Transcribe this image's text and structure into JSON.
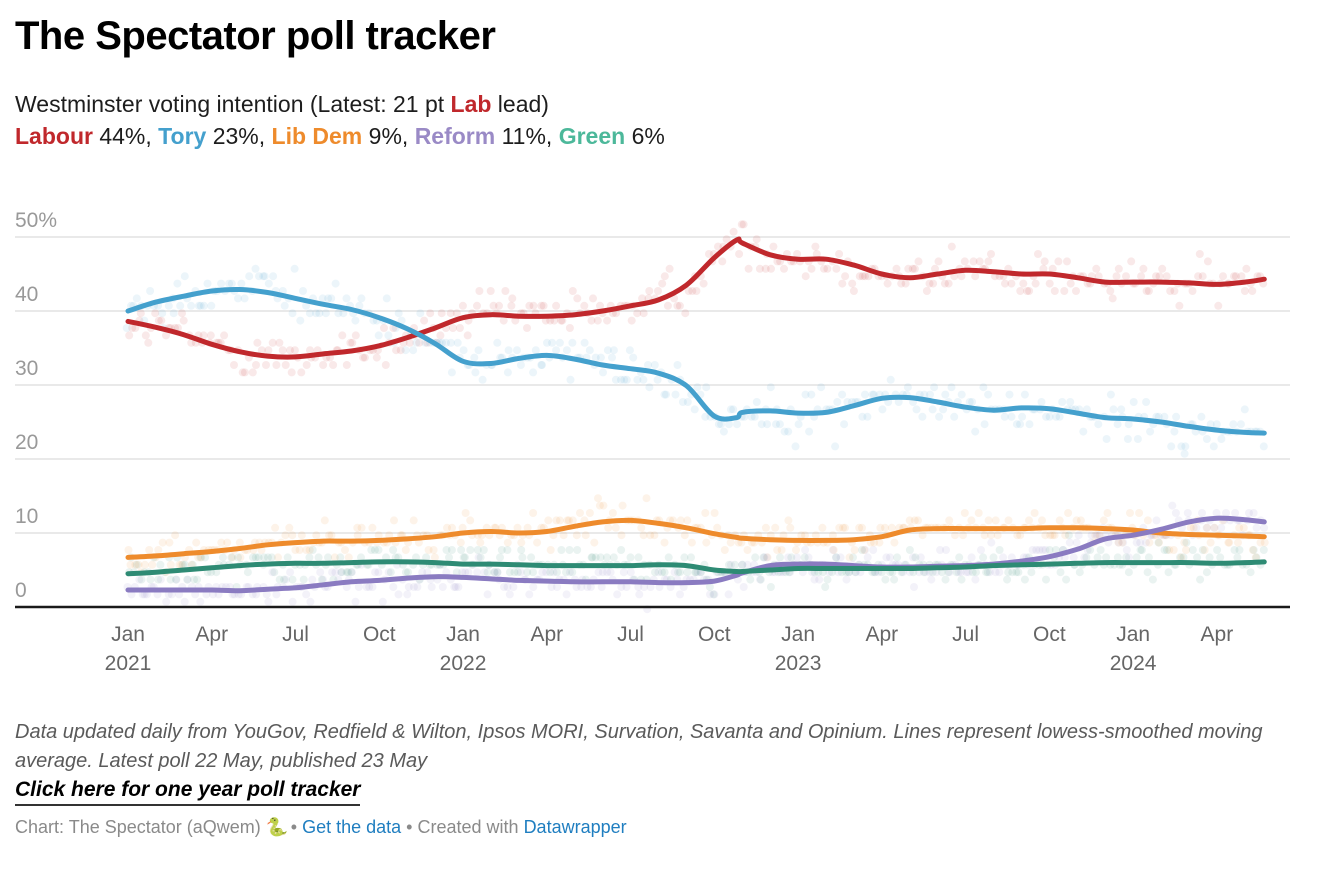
{
  "header": {
    "title": "The Spectator poll tracker",
    "subtitle_prefix": "Westminster voting intention (Latest: 21 pt ",
    "subtitle_party": "Lab",
    "subtitle_suffix": " lead)",
    "legend": [
      {
        "party": "Labour",
        "value": " 44%",
        "sep": ", "
      },
      {
        "party": "Tory",
        "value": " 23%",
        "sep": ", "
      },
      {
        "party": "Lib Dem",
        "value": " 9%",
        "sep": ", "
      },
      {
        "party": "Reform",
        "value": " 11%",
        "sep": ", "
      },
      {
        "party": "Green",
        "value": " 6%",
        "sep": ""
      }
    ]
  },
  "notes": "Data updated daily from YouGov, Redfield & Wilton, Ipsos MORI, Survation, Savanta and Opinium. Lines represent lowess-smoothed moving average. Latest poll 22 May, published 23 May",
  "link_label": "Click here for one year poll tracker",
  "footer": {
    "chart_credit": "Chart: The Spectator (aQwem)",
    "snake_icon": "🐍",
    "bullet": " • ",
    "get_data": "Get the data",
    "created_with": "Created with",
    "datawrapper": "Datawrapper"
  },
  "colors": {
    "Labour": "#c0282c",
    "Tory": "#44a0cd",
    "Lib Dem": "#ee8b2c",
    "Reform": "#8a7bc1",
    "Green": "#2e8b74"
  },
  "chart_data": {
    "type": "line",
    "title": "The Spectator poll tracker",
    "subtitle": "Westminster voting intention",
    "xlabel": "",
    "ylabel": "",
    "ylim": [
      0,
      50
    ],
    "y_ticks": [
      0,
      10,
      20,
      30,
      40,
      50
    ],
    "y_tick_labels": [
      "0",
      "10",
      "20",
      "30",
      "40",
      "50%"
    ],
    "x_ticks": [
      {
        "month_index": 0,
        "label": "Jan",
        "year": "2021"
      },
      {
        "month_index": 3,
        "label": "Apr",
        "year": ""
      },
      {
        "month_index": 6,
        "label": "Jul",
        "year": ""
      },
      {
        "month_index": 9,
        "label": "Oct",
        "year": ""
      },
      {
        "month_index": 12,
        "label": "Jan",
        "year": "2022"
      },
      {
        "month_index": 15,
        "label": "Apr",
        "year": ""
      },
      {
        "month_index": 18,
        "label": "Jul",
        "year": ""
      },
      {
        "month_index": 21,
        "label": "Oct",
        "year": ""
      },
      {
        "month_index": 24,
        "label": "Jan",
        "year": "2023"
      },
      {
        "month_index": 27,
        "label": "Apr",
        "year": ""
      },
      {
        "month_index": 30,
        "label": "Jul",
        "year": ""
      },
      {
        "month_index": 33,
        "label": "Oct",
        "year": ""
      },
      {
        "month_index": 36,
        "label": "Jan",
        "year": "2024"
      },
      {
        "month_index": 39,
        "label": "Apr",
        "year": ""
      }
    ],
    "x_range_months": [
      -1.5,
      41.4
    ],
    "grid": true,
    "legend": "in subtitle",
    "x": [
      0,
      1,
      2,
      3,
      4,
      5,
      6,
      7,
      8,
      9,
      10,
      11,
      12,
      13,
      14,
      15,
      16,
      17,
      18,
      19,
      20,
      21,
      21.8,
      22,
      23,
      24,
      25,
      26,
      27,
      28,
      29,
      30,
      31,
      32,
      33,
      34,
      35,
      36,
      37,
      38,
      39,
      40,
      40.7
    ],
    "series": [
      {
        "name": "Labour",
        "values": [
          38.6,
          37.8,
          36.8,
          35.5,
          34.5,
          33.9,
          33.8,
          34.2,
          34.6,
          35.3,
          36.4,
          37.7,
          39.1,
          39.5,
          39.3,
          39.3,
          39.5,
          40.0,
          40.7,
          41.5,
          43.5,
          47.2,
          49.6,
          49.2,
          47.6,
          47.0,
          47.0,
          46.2,
          45.0,
          44.5,
          45.0,
          45.5,
          45.3,
          45.0,
          45.0,
          44.5,
          43.9,
          43.9,
          43.9,
          43.8,
          43.6,
          43.9,
          44.3
        ]
      },
      {
        "name": "Tory",
        "values": [
          40.0,
          41.2,
          42.0,
          42.7,
          42.9,
          42.5,
          41.7,
          40.9,
          40.2,
          39.1,
          37.6,
          35.6,
          33.2,
          32.9,
          33.6,
          34.0,
          33.5,
          32.7,
          32.2,
          31.6,
          29.9,
          25.8,
          25.6,
          26.3,
          26.5,
          26.2,
          26.3,
          27.2,
          28.2,
          28.3,
          27.7,
          27.0,
          26.6,
          26.9,
          26.8,
          26.2,
          25.6,
          25.4,
          25.0,
          24.4,
          23.9,
          23.6,
          23.5
        ]
      },
      {
        "name": "Lib Dem",
        "values": [
          6.7,
          6.9,
          7.2,
          7.5,
          7.9,
          8.4,
          8.7,
          8.9,
          8.9,
          9.0,
          9.2,
          9.5,
          10.0,
          10.2,
          10.0,
          10.2,
          10.9,
          11.5,
          11.7,
          11.3,
          10.7,
          9.9,
          9.4,
          9.3,
          9.1,
          9.0,
          9.0,
          9.1,
          9.5,
          10.4,
          10.6,
          10.6,
          10.6,
          10.6,
          10.7,
          10.7,
          10.6,
          10.4,
          10.0,
          9.8,
          9.7,
          9.6,
          9.5
        ]
      },
      {
        "name": "Reform",
        "values": [
          2.3,
          2.3,
          2.3,
          2.3,
          2.2,
          2.4,
          2.6,
          3.0,
          3.4,
          3.6,
          3.9,
          4.1,
          4.0,
          3.8,
          3.6,
          3.5,
          3.4,
          3.4,
          3.4,
          3.3,
          3.3,
          3.5,
          4.3,
          4.6,
          5.6,
          5.8,
          5.8,
          5.6,
          5.4,
          5.4,
          5.5,
          5.6,
          5.8,
          6.2,
          6.8,
          7.8,
          9.2,
          9.7,
          10.5,
          11.5,
          12.0,
          11.8,
          11.5
        ]
      },
      {
        "name": "Green",
        "values": [
          4.5,
          4.7,
          5.0,
          5.3,
          5.6,
          5.8,
          5.9,
          5.9,
          6.0,
          6.1,
          6.1,
          6.0,
          5.8,
          5.8,
          5.7,
          5.6,
          5.6,
          5.6,
          5.6,
          5.7,
          5.6,
          5.0,
          4.8,
          4.8,
          5.0,
          5.2,
          5.2,
          5.2,
          5.2,
          5.2,
          5.3,
          5.4,
          5.6,
          5.7,
          5.8,
          5.9,
          6.0,
          6.0,
          6.0,
          6.0,
          5.9,
          6.0,
          6.1
        ]
      }
    ]
  }
}
